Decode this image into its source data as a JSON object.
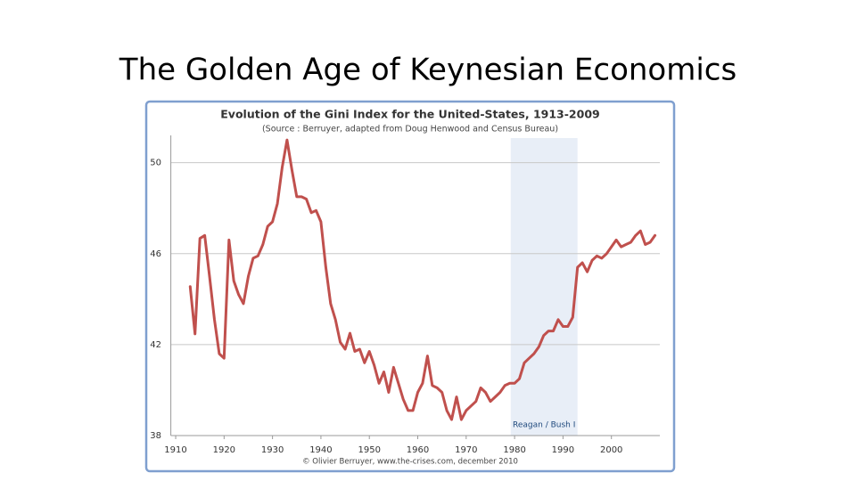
{
  "slide_title": "The Golden Age of Keynesian Economics",
  "chart_data": {
    "type": "line",
    "title": "Evolution of the Gini Index for the United-States, 1913-2009",
    "subtitle": "(Source : Berruyer, adapted from Doug Henwood and Census Bureau)",
    "source_note": "© Olivier Berruyer, www.the-crises.com, december 2010",
    "color": "#c0504d",
    "x": [
      1913,
      1914,
      1915,
      1916,
      1917,
      1918,
      1919,
      1920,
      1921,
      1922,
      1923,
      1924,
      1925,
      1926,
      1927,
      1928,
      1929,
      1930,
      1931,
      1932,
      1933,
      1934,
      1935,
      1936,
      1937,
      1938,
      1939,
      1940,
      1941,
      1942,
      1943,
      1944,
      1945,
      1946,
      1947,
      1948,
      1949,
      1950,
      1951,
      1952,
      1953,
      1954,
      1955,
      1956,
      1957,
      1958,
      1959,
      1960,
      1961,
      1962,
      1963,
      1964,
      1965,
      1966,
      1967,
      1968,
      1969,
      1970,
      1971,
      1972,
      1973,
      1974,
      1975,
      1976,
      1977,
      1978,
      1979,
      1980,
      1981,
      1982,
      1983,
      1984,
      1985,
      1986,
      1987,
      1988,
      1989,
      1990,
      1991,
      1992,
      1993,
      1994,
      1995,
      1996,
      1997,
      1998,
      1999,
      2000,
      2001,
      2002,
      2003,
      2004,
      2005,
      2006,
      2007,
      2008,
      2009
    ],
    "values": [
      44.55,
      42.47,
      46.67,
      46.8,
      45.0,
      43.1,
      41.6,
      41.4,
      46.6,
      44.8,
      44.2,
      43.8,
      45.0,
      45.8,
      45.9,
      46.4,
      47.2,
      47.4,
      48.2,
      49.8,
      51.0,
      49.7,
      48.5,
      48.5,
      48.4,
      47.8,
      47.9,
      47.4,
      45.4,
      43.8,
      43.1,
      42.1,
      41.8,
      42.5,
      41.7,
      41.8,
      41.2,
      41.7,
      41.1,
      40.3,
      40.8,
      39.9,
      41.0,
      40.3,
      39.6,
      39.1,
      39.1,
      39.9,
      40.3,
      41.5,
      40.2,
      40.1,
      39.9,
      39.1,
      38.7,
      39.7,
      38.7,
      39.1,
      39.3,
      39.5,
      40.1,
      39.9,
      39.5,
      39.7,
      39.9,
      40.2,
      40.3,
      40.3,
      40.5,
      41.2,
      41.4,
      41.6,
      41.9,
      42.4,
      42.6,
      42.6,
      43.1,
      42.8,
      42.8,
      43.2,
      45.4,
      45.6,
      45.2,
      45.7,
      45.9,
      45.8,
      46.0,
      46.3,
      46.6,
      46.3,
      46.4,
      46.5,
      46.8,
      47.0,
      46.4,
      46.5,
      46.8
    ],
    "xlim": [
      1909,
      2010
    ],
    "xticks": [
      1910,
      1920,
      1930,
      1940,
      1950,
      1960,
      1970,
      1980,
      1990,
      2000
    ],
    "ylim": [
      38,
      51.2
    ],
    "yticks": [
      38,
      42,
      46,
      50
    ],
    "grid": true,
    "shaded_span": [
      1979.2,
      1993
    ],
    "shaded_color": "#e8eef7",
    "shaded_label": "Reagan / Bush I"
  }
}
